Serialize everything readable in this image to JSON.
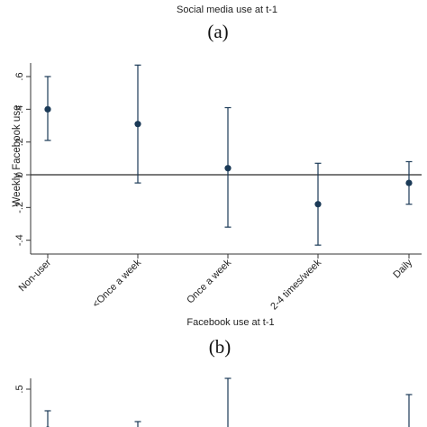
{
  "colors": {
    "marker": "#1b3a57",
    "axis": "#333333",
    "zero_line": "#2b2b2b",
    "text": "#222222"
  },
  "chart_data": [
    {
      "type": "scatter",
      "panel_label": "(a)",
      "title": "Social media use at t-1",
      "ylabel": "Weekly Facebook use",
      "xlabel": "",
      "error_bars": true,
      "reference_line_y": 0,
      "grid": false,
      "ylim": [
        -0.42,
        0.62
      ],
      "y_ticks": [
        0.6,
        0.4,
        0.2,
        0,
        -0.2,
        -0.4
      ],
      "y_tick_labels": [
        ".6",
        ".4",
        ".2",
        "0",
        "-.2",
        "-.4"
      ],
      "categories": [
        "Non-user",
        "<Once a week",
        "Once a week",
        "2-4 times/week",
        "Daily"
      ],
      "values": [
        0.4,
        0.31,
        0.04,
        -0.18,
        -0.05
      ],
      "ci_low": [
        0.21,
        -0.05,
        -0.32,
        -0.43,
        -0.18
      ],
      "ci_high": [
        0.6,
        0.67,
        0.41,
        0.07,
        0.08
      ]
    },
    {
      "type": "scatter",
      "panel_label": "(b)",
      "title": "Facebook use at t-1",
      "error_bars": true,
      "y_ticks": [
        0.5
      ],
      "y_tick_labels": [
        ".5"
      ],
      "partial": true,
      "values_visible": [
        0.35
      ],
      "ci_high_visible": [
        0.42,
        0.38,
        0.54,
        0.48
      ]
    }
  ]
}
